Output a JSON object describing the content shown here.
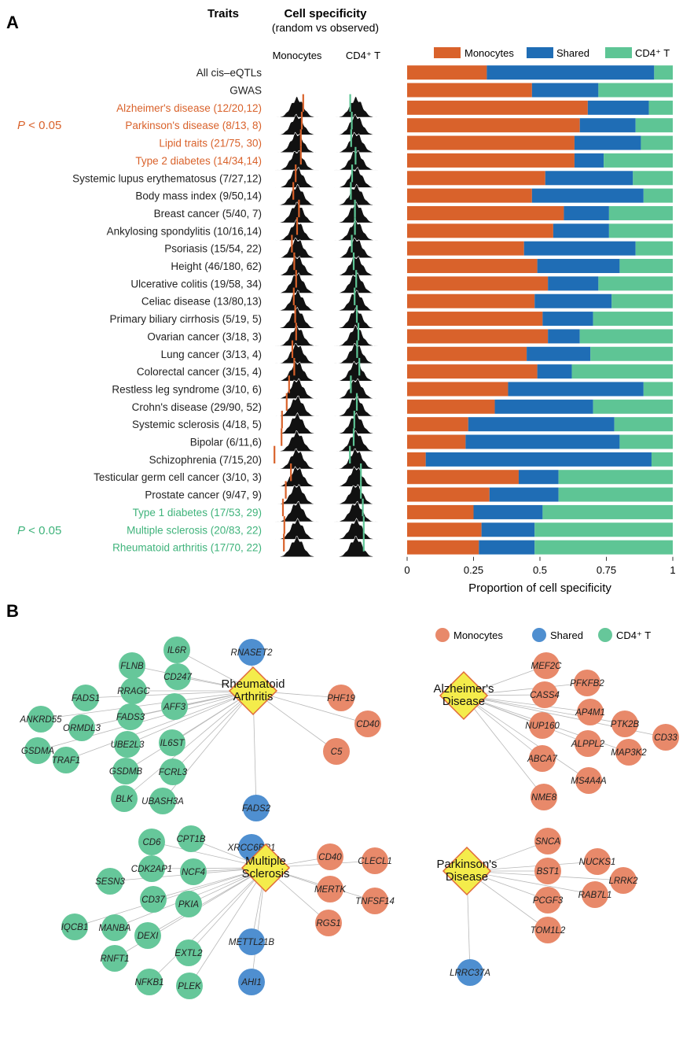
{
  "panel_a": {
    "label": "A",
    "header_traits": "Traits",
    "header_cellspec": "Cell specificity",
    "header_random": "(random vs observed)",
    "col_monocytes": "Monocytes",
    "col_cd4": "CD4⁺ T",
    "pvalue_label": "P < 0.05"
  },
  "panel_b": {
    "label": "B",
    "legend": [
      "Monocytes",
      "Shared",
      "CD4⁺ T"
    ]
  },
  "colors": {
    "monocytes": "#d9622b",
    "shared": "#1f6db5",
    "cd4": "#5ec595",
    "node_mono": "#e8896a",
    "node_shared": "#4f8fd0",
    "node_cd4": "#66c79a",
    "hub": "#f4ec4b",
    "hub_border": "#e06a3a"
  },
  "chart_data": [
    {
      "type": "bar",
      "stacked": true,
      "orientation": "horizontal",
      "xlabel": "Proportion of cell specificity",
      "xlim": [
        0,
        1
      ],
      "xticks": [
        "0",
        "0.25",
        "0.5",
        "0.75",
        "1"
      ],
      "legend": "top",
      "categories": [
        "All cis–eQTLs",
        "GWAS",
        "Alzheimer's disease (12/20,12)",
        "Parkinson's disease (8/13, 8)",
        "Lipid traits (21/75, 30)",
        "Type 2 diabetes (14/34,14)",
        "Systemic lupus erythematosus (7/27,12)",
        "Body mass index (9/50,14)",
        "Breast cancer (5/40, 7)",
        "Ankylosing spondylitis (10/16,14)",
        "Psoriasis (15/54, 22)",
        "Height (46/180, 62)",
        "Ulcerative colitis (19/58, 34)",
        "Celiac disease (13/80,13)",
        "Primary biliary cirrhosis (5/19, 5)",
        "Ovarian cancer (3/18, 3)",
        "Lung cancer (3/13, 4)",
        "Colorectal cancer (3/15, 4)",
        "Restless leg syndrome (3/10, 6)",
        "Crohn's disease (29/90, 52)",
        "Systemic sclerosis (4/18, 5)",
        "Bipolar  (6/11,6)",
        "Schizophrenia (7/15,20)",
        "Testicular germ cell cancer (3/10, 3)",
        "Prostate cancer (9/47, 9)",
        "Type 1 diabetes (17/53, 29)",
        "Multiple sclerosis (20/83, 22)",
        "Rheumatoid arthritis (17/70, 22)"
      ],
      "significance": [
        "none",
        "none",
        "mono",
        "mono",
        "mono",
        "mono",
        "none",
        "none",
        "none",
        "none",
        "none",
        "none",
        "none",
        "none",
        "none",
        "none",
        "none",
        "none",
        "none",
        "none",
        "none",
        "none",
        "none",
        "none",
        "none",
        "cd4",
        "cd4",
        "cd4"
      ],
      "series": [
        {
          "name": "Monocytes",
          "values": [
            0.3,
            0.47,
            0.68,
            0.65,
            0.63,
            0.63,
            0.52,
            0.47,
            0.59,
            0.55,
            0.44,
            0.49,
            0.53,
            0.48,
            0.51,
            0.53,
            0.45,
            0.49,
            0.38,
            0.33,
            0.23,
            0.22,
            0.07,
            0.42,
            0.31,
            0.25,
            0.28,
            0.27
          ]
        },
        {
          "name": "Shared",
          "values": [
            0.63,
            0.25,
            0.23,
            0.21,
            0.25,
            0.11,
            0.33,
            0.42,
            0.17,
            0.21,
            0.42,
            0.31,
            0.19,
            0.29,
            0.19,
            0.12,
            0.24,
            0.13,
            0.51,
            0.37,
            0.55,
            0.58,
            0.85,
            0.15,
            0.26,
            0.26,
            0.2,
            0.21
          ]
        },
        {
          "name": "CD4⁺ T",
          "values": [
            0.07,
            0.28,
            0.09,
            0.14,
            0.12,
            0.26,
            0.15,
            0.11,
            0.24,
            0.24,
            0.14,
            0.2,
            0.28,
            0.23,
            0.3,
            0.35,
            0.31,
            0.38,
            0.11,
            0.3,
            0.22,
            0.2,
            0.08,
            0.43,
            0.43,
            0.49,
            0.52,
            0.52
          ]
        }
      ]
    }
  ],
  "networks": [
    {
      "hub": [
        "Rheumatoid",
        "Arthritis"
      ],
      "nodes": [
        {
          "label": "IL6R",
          "type": "cd4"
        },
        {
          "label": "FLNB",
          "type": "cd4"
        },
        {
          "label": "CD247",
          "type": "cd4"
        },
        {
          "label": "RRAGC",
          "type": "cd4"
        },
        {
          "label": "FADS1",
          "type": "cd4"
        },
        {
          "label": "AFF3",
          "type": "cd4"
        },
        {
          "label": "FADS3",
          "type": "cd4"
        },
        {
          "label": "ANKRD55",
          "type": "cd4"
        },
        {
          "label": "ORMDL3",
          "type": "cd4"
        },
        {
          "label": "UBE2L3",
          "type": "cd4"
        },
        {
          "label": "IL6ST",
          "type": "cd4"
        },
        {
          "label": "GSDMA",
          "type": "cd4"
        },
        {
          "label": "TRAF1",
          "type": "cd4"
        },
        {
          "label": "GSDMB",
          "type": "cd4"
        },
        {
          "label": "FCRL3",
          "type": "cd4"
        },
        {
          "label": "BLK",
          "type": "cd4"
        },
        {
          "label": "UBASH3A",
          "type": "cd4"
        },
        {
          "label": "RNASET2",
          "type": "shared"
        },
        {
          "label": "FADS2",
          "type": "shared"
        },
        {
          "label": "PHF19",
          "type": "mono"
        },
        {
          "label": "CD40",
          "type": "mono"
        },
        {
          "label": "C5",
          "type": "mono"
        }
      ]
    },
    {
      "hub": [
        "Alzheimer's",
        "Disease"
      ],
      "nodes": [
        {
          "label": "MEF2C",
          "type": "mono"
        },
        {
          "label": "PFKFB2",
          "type": "mono"
        },
        {
          "label": "CASS4",
          "type": "mono"
        },
        {
          "label": "AP4M1",
          "type": "mono"
        },
        {
          "label": "PTK2B",
          "type": "mono"
        },
        {
          "label": "CD33",
          "type": "mono"
        },
        {
          "label": "NUP160",
          "type": "mono"
        },
        {
          "label": "MAP3K2",
          "type": "mono"
        },
        {
          "label": "ALPPL2",
          "type": "mono"
        },
        {
          "label": "ABCA7",
          "type": "mono"
        },
        {
          "label": "MS4A4A",
          "type": "mono"
        },
        {
          "label": "NME8",
          "type": "mono"
        }
      ]
    },
    {
      "hub": [
        "Multiple",
        "Sclerosis"
      ],
      "nodes": [
        {
          "label": "CD6",
          "type": "cd4"
        },
        {
          "label": "CPT1B",
          "type": "cd4"
        },
        {
          "label": "CDK2AP1",
          "type": "cd4"
        },
        {
          "label": "NCF4",
          "type": "cd4"
        },
        {
          "label": "SESN3",
          "type": "cd4"
        },
        {
          "label": "CD37",
          "type": "cd4"
        },
        {
          "label": "PKIA",
          "type": "cd4"
        },
        {
          "label": "IQCB1",
          "type": "cd4"
        },
        {
          "label": "MANBA",
          "type": "cd4"
        },
        {
          "label": "RNFT1",
          "type": "cd4"
        },
        {
          "label": "DEXI",
          "type": "cd4"
        },
        {
          "label": "EXTL2",
          "type": "cd4"
        },
        {
          "label": "NFKB1",
          "type": "cd4"
        },
        {
          "label": "PLEK",
          "type": "cd4"
        },
        {
          "label": "XRCC6BP1",
          "type": "shared"
        },
        {
          "label": "METTL21B",
          "type": "shared"
        },
        {
          "label": "AHI1",
          "type": "shared"
        },
        {
          "label": "CD40",
          "type": "mono"
        },
        {
          "label": "CLECL1",
          "type": "mono"
        },
        {
          "label": "MERTK",
          "type": "mono"
        },
        {
          "label": "TNFSF14",
          "type": "mono"
        },
        {
          "label": "RGS1",
          "type": "mono"
        }
      ]
    },
    {
      "hub": [
        "Parkinson's",
        "Disease"
      ],
      "nodes": [
        {
          "label": "SNCA",
          "type": "mono"
        },
        {
          "label": "NUCKS1",
          "type": "mono"
        },
        {
          "label": "BST1",
          "type": "mono"
        },
        {
          "label": "LRRK2",
          "type": "mono"
        },
        {
          "label": "RAB7L1",
          "type": "mono"
        },
        {
          "label": "PCGF3",
          "type": "mono"
        },
        {
          "label": "TOM1L2",
          "type": "mono"
        },
        {
          "label": "LRRC37A",
          "type": "shared"
        }
      ]
    }
  ]
}
